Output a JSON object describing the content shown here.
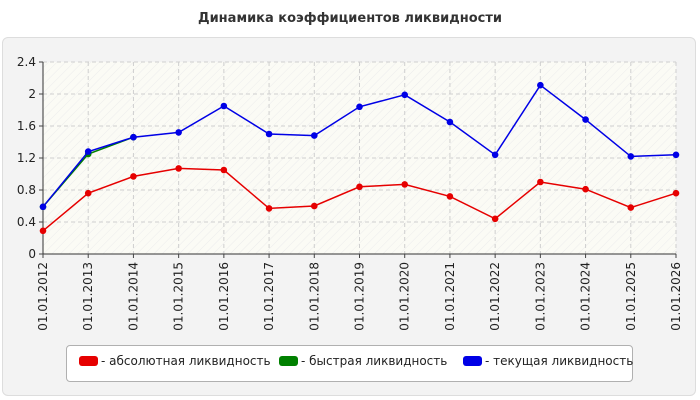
{
  "chart_data": {
    "type": "line",
    "title": "Динамика коэффициентов ликвидности",
    "xlabel": "",
    "ylabel": "",
    "categories": [
      "01.01.2012",
      "01.01.2013",
      "01.01.2014",
      "01.01.2015",
      "01.01.2016",
      "01.01.2017",
      "01.01.2018",
      "01.01.2019",
      "01.01.2020",
      "01.01.2021",
      "01.01.2022",
      "01.01.2023",
      "01.01.2024",
      "01.01.2025",
      "01.01.2026"
    ],
    "ylim": [
      0,
      2.4
    ],
    "yticks": [
      "0",
      "0.4",
      "0.8",
      "1.2",
      "1.6",
      "2",
      "2.4"
    ],
    "grid": true,
    "legend_position": "bottom",
    "series": [
      {
        "name": "- абсолютная ликвидность",
        "color": "#e60000",
        "values": [
          0.29,
          0.76,
          0.97,
          1.07,
          1.05,
          0.57,
          0.6,
          0.84,
          0.87,
          0.72,
          0.44,
          0.9,
          0.81,
          0.58,
          0.76
        ]
      },
      {
        "name": "- быстрая ликвидность",
        "color": "#008000",
        "values": [
          0.59,
          1.25,
          1.46,
          null,
          null,
          null,
          null,
          null,
          null,
          null,
          null,
          null,
          null,
          null,
          null
        ]
      },
      {
        "name": "- текущая ликвидность",
        "color": "#0000e6",
        "values": [
          0.59,
          1.28,
          1.46,
          1.52,
          1.85,
          1.5,
          1.48,
          1.84,
          1.99,
          1.65,
          1.24,
          2.11,
          1.68,
          1.22,
          1.24
        ]
      }
    ]
  }
}
